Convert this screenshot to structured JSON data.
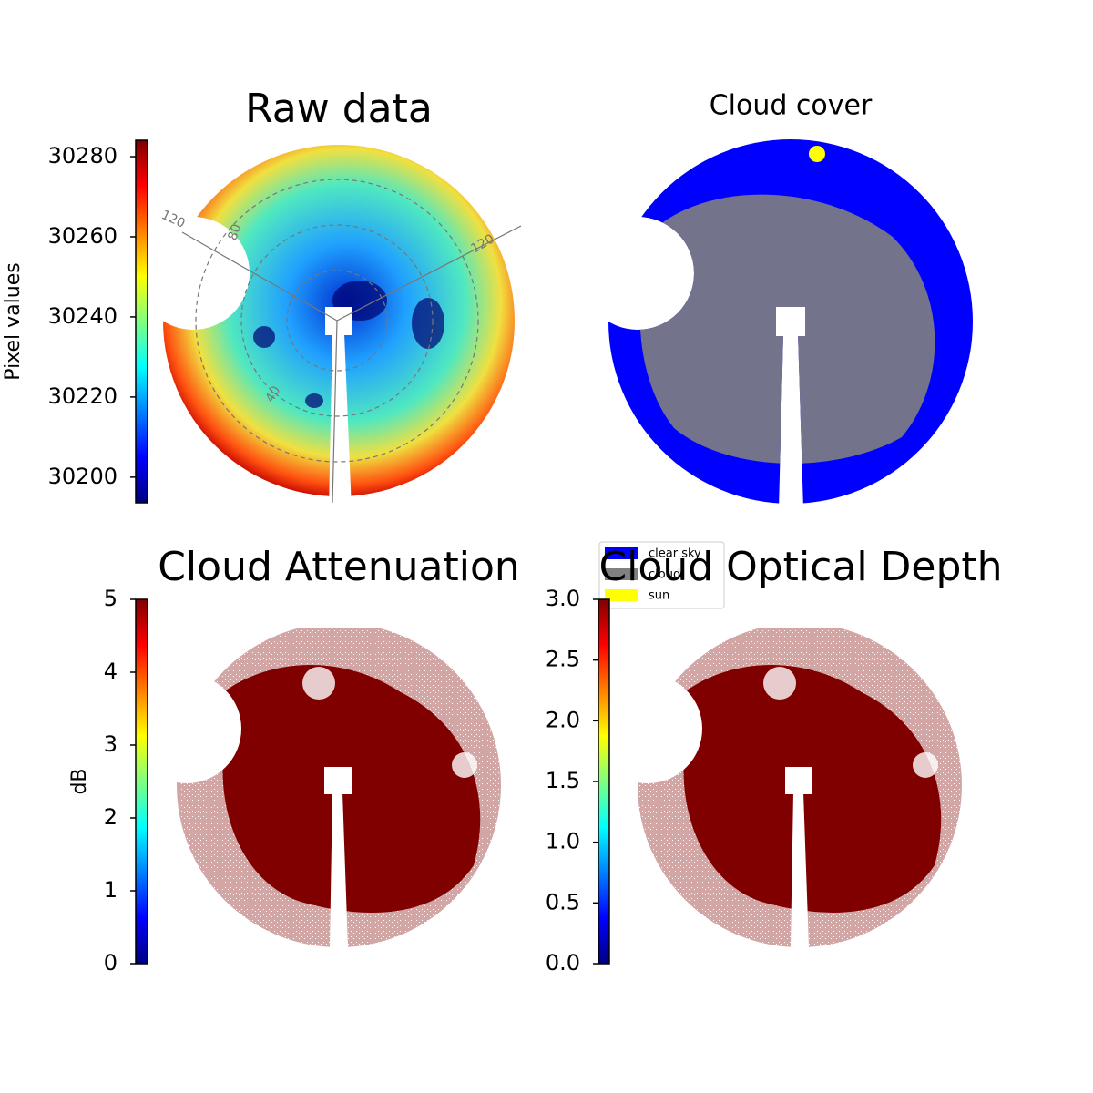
{
  "chart_data": [
    {
      "type": "image",
      "title": "Raw data",
      "y_label": "Pixel values",
      "colormap": "jet",
      "ylim": [
        30193.6,
        30284.1
      ],
      "yticks": [
        30200,
        30220,
        30240,
        30260,
        30280
      ],
      "polar_labels": [
        "120",
        "80",
        "40",
        "120"
      ]
    },
    {
      "type": "image",
      "title": "Cloud cover",
      "categories": [
        "clear sky",
        "cloud",
        "sun"
      ],
      "colors": [
        "#0000ff",
        "#808080",
        "#ffff00"
      ]
    },
    {
      "type": "image",
      "title": "Cloud Attenuation",
      "y_label": "dB",
      "colormap": "jet",
      "ylim": [
        0,
        5
      ],
      "yticks": [
        0,
        1,
        2,
        3,
        4,
        5
      ]
    },
    {
      "type": "image",
      "title": "Cloud Optical Depth",
      "colormap": "jet",
      "ylim": [
        0,
        3
      ],
      "yticks": [
        {
          "value": 0,
          "label": "0.0"
        },
        0.5,
        {
          "value": 1,
          "label": "1.0"
        },
        1.5,
        {
          "value": 2,
          "label": "2.0"
        },
        2.5,
        {
          "value": 3,
          "label": "3.0"
        }
      ]
    }
  ]
}
